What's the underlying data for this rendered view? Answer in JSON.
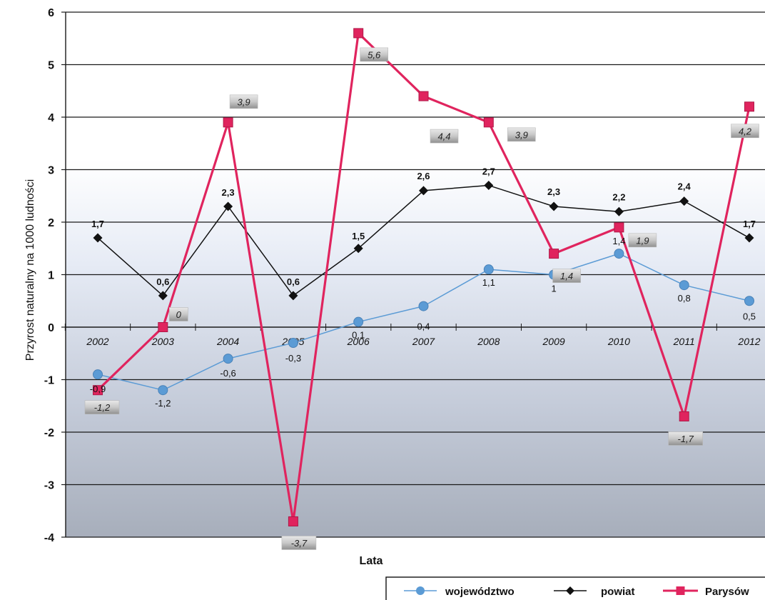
{
  "chart_data": {
    "type": "line",
    "title": "",
    "xlabel": "Lata",
    "ylabel": "Przyrost naturalny na 1000 ludności",
    "ylim": [
      -4,
      6
    ],
    "yticks": [
      "-4",
      "-3",
      "-2",
      "-1",
      "0",
      "1",
      "2",
      "3",
      "4",
      "5",
      "6"
    ],
    "categories": [
      "2002",
      "2003",
      "2004",
      "2005",
      "2006",
      "2007",
      "2008",
      "2009",
      "2010",
      "2011",
      "2012"
    ],
    "grid": "horizontal",
    "legend_position": "bottom-right",
    "series": [
      {
        "name": "województwo",
        "color": "#5b9bd5",
        "marker": "circle",
        "values": [
          -0.9,
          -1.2,
          -0.6,
          -0.3,
          0.1,
          0.4,
          1.1,
          1.0,
          1.4,
          0.8,
          0.5
        ],
        "labels": [
          "-0,9",
          "-1,2",
          "-0,6",
          "-0,3",
          "0,1",
          "0,4",
          "1,1",
          "1",
          "1,4",
          "0,8",
          "0,5"
        ]
      },
      {
        "name": "powiat",
        "color": "#111111",
        "marker": "diamond",
        "values": [
          1.7,
          0.6,
          2.3,
          0.6,
          1.5,
          2.6,
          2.7,
          2.3,
          2.2,
          2.4,
          1.7
        ],
        "labels": [
          "1,7",
          "0,6",
          "2,3",
          "0,6",
          "1,5",
          "2,6",
          "2,7",
          "2,3",
          "2,2",
          "2,4",
          "1,7"
        ]
      },
      {
        "name": "Parysów",
        "color": "#e0245e",
        "marker": "square",
        "values": [
          -1.2,
          0,
          3.9,
          -3.7,
          5.6,
          4.4,
          3.9,
          1.4,
          1.9,
          -1.7,
          4.2
        ],
        "labels": [
          "-1,2",
          "0",
          "3,9",
          "-3,7",
          "5,6",
          "4,4",
          "3,9",
          "1,4",
          "1,9",
          "-1,7",
          "4,2"
        ]
      }
    ]
  }
}
